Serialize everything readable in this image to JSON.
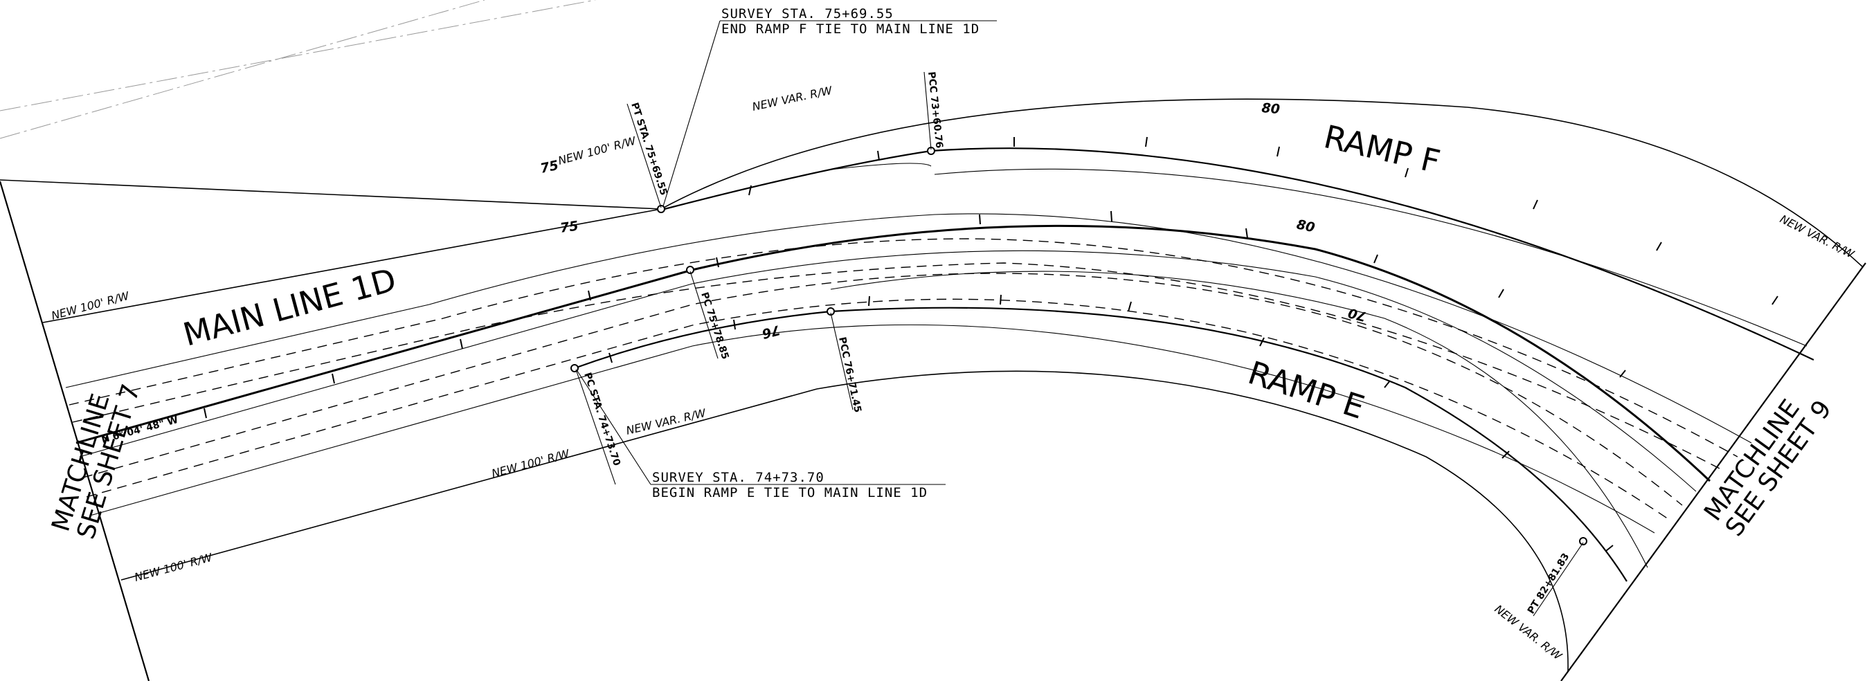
{
  "labels": {
    "main_line": "MAIN LINE 1D",
    "ramp_f": "RAMP F",
    "ramp_e": "RAMP E"
  },
  "matchlines": {
    "left": {
      "line1": "MATCHLINE",
      "line2": "SEE SHEET 7"
    },
    "right": {
      "line1": "MATCHLINE",
      "line2": "SEE SHEET 9"
    }
  },
  "notes": {
    "end_ramp_f": {
      "line1": "SURVEY STA. 75+69.55",
      "line2": "END RAMP F TIE TO MAIN LINE 1D"
    },
    "begin_ramp_e": {
      "line1": "SURVEY STA. 74+73.70",
      "line2": "BEGIN RAMP E TIE TO MAIN LINE 1D"
    }
  },
  "row_labels": {
    "new_100_rw": "NEW 100' R/W",
    "new_var_rw": "NEW VAR. R/W"
  },
  "stations": {
    "pt_ramp_f": "PT STA. 75+69.55",
    "pcc_ramp_f": "PCC 73+60.76",
    "pc_main": "PC 75+78.85",
    "pc_ramp_e": "PC STA. 74+73.70",
    "pcc_ramp_e": "PCC 76+71.45",
    "pt_ramp_e": "PT 82+81.83"
  },
  "bearing": "N 6° 04' 48\" W",
  "station_numbers": {
    "n75_top": "75",
    "n75_mid": "75",
    "n80_top": "80",
    "n80_mid": "80",
    "n70": "70",
    "n76": "76"
  }
}
